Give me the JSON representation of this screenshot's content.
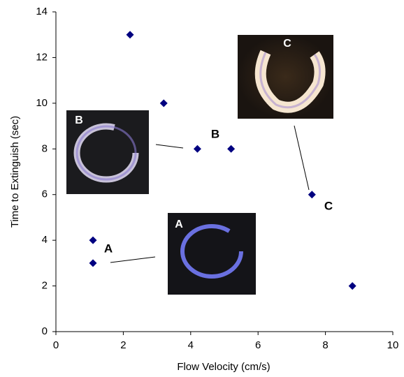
{
  "chart_data": {
    "type": "scatter",
    "x_label": "Flow Velocity (cm/s)",
    "y_label": "Time to Extinguish (sec)",
    "series": [
      {
        "color": "#000080",
        "x": [
          1.1,
          1.1,
          2.2,
          3.2,
          4.2,
          5.2,
          7.6,
          8.8
        ],
        "values": [
          4,
          3,
          13,
          10,
          8,
          8,
          6,
          2
        ]
      }
    ],
    "xlim": [
      0,
      10
    ],
    "xticks": [
      0,
      2,
      4,
      6,
      8,
      10
    ],
    "ylim": [
      0,
      14
    ],
    "yticks": [
      0,
      2,
      4,
      6,
      8,
      10,
      12,
      14
    ],
    "annotations": [
      "A",
      "B",
      "C"
    ],
    "insets": [
      "A",
      "B",
      "C"
    ]
  }
}
